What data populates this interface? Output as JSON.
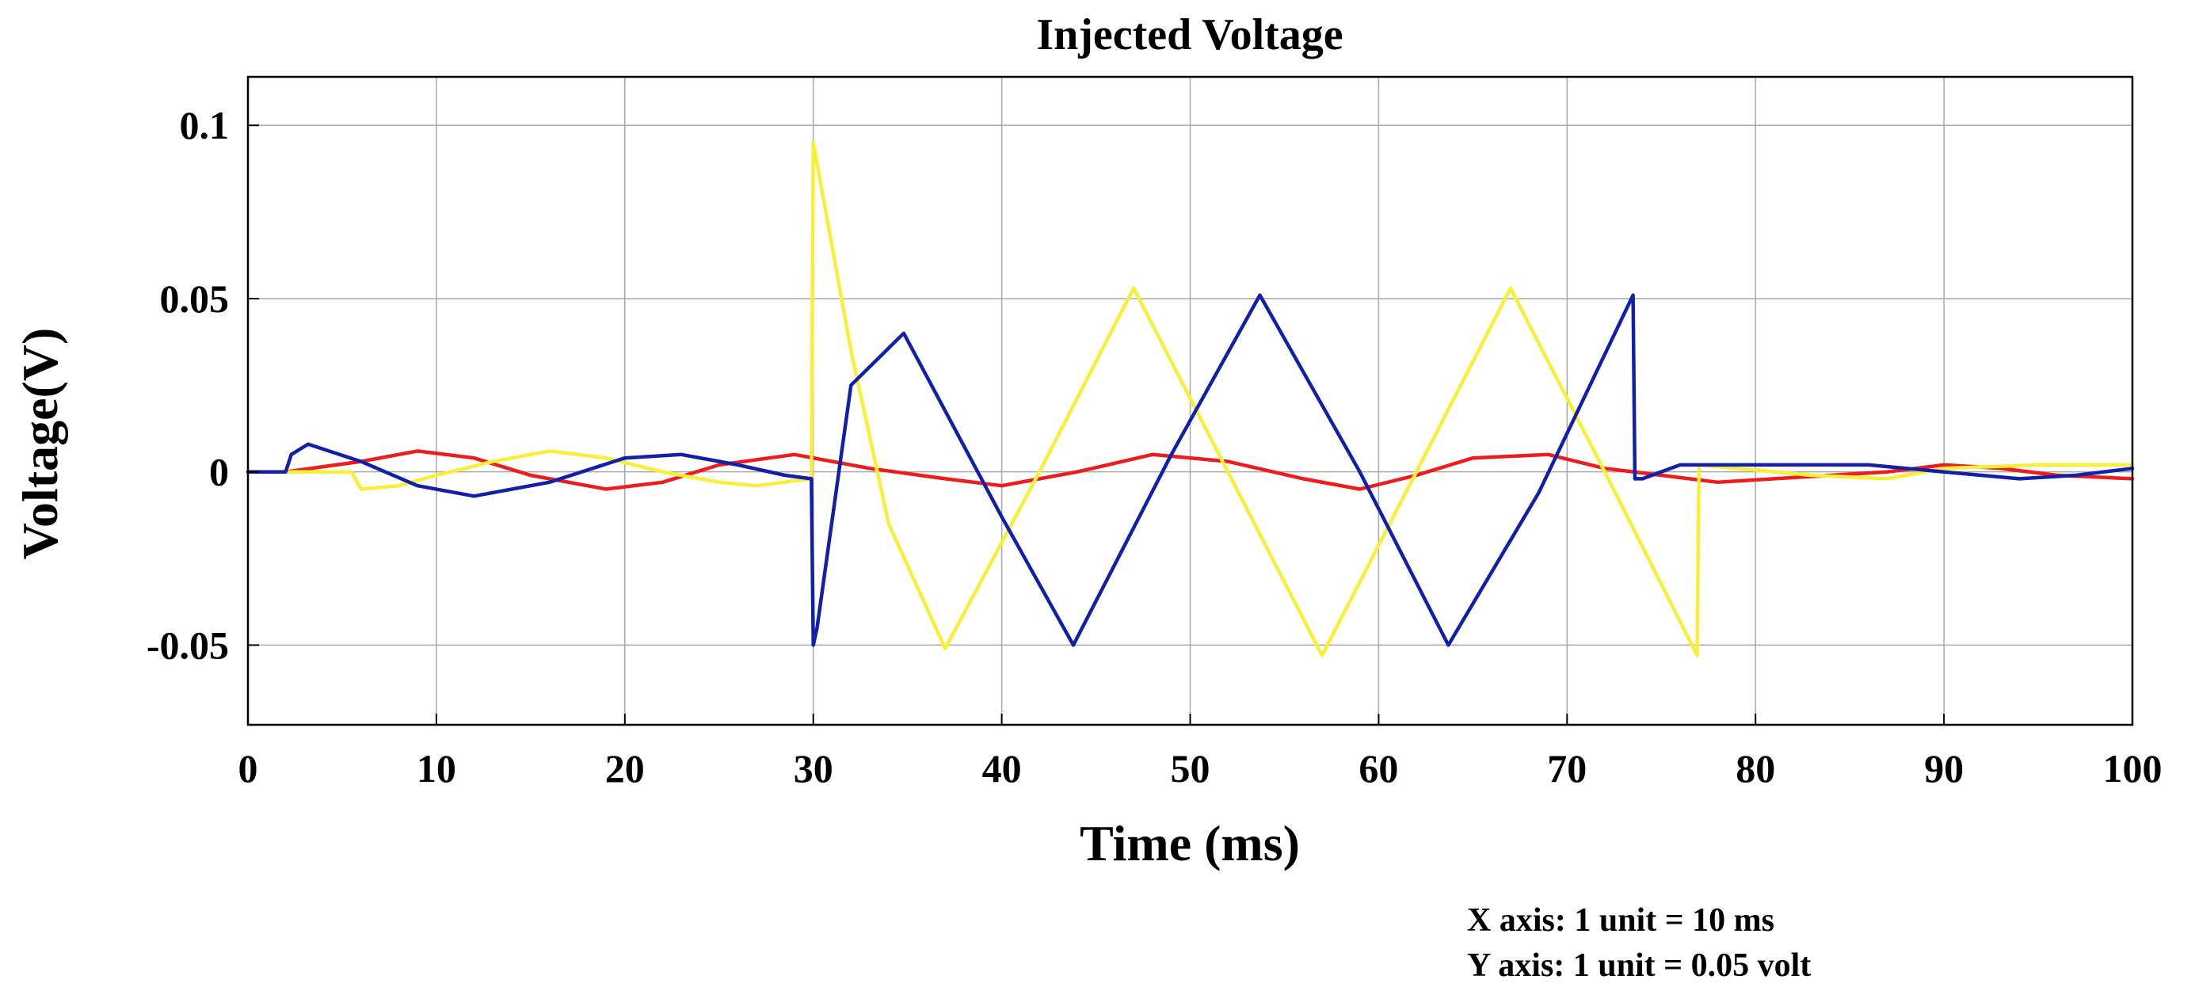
{
  "chart_data": {
    "type": "line",
    "title": "Injected Voltage",
    "xlabel": "Time (ms)",
    "ylabel": "Voltage(V)",
    "xlim": [
      0,
      100
    ],
    "ylim": [
      -0.073,
      0.114
    ],
    "grid": true,
    "x_ticks": [
      0,
      10,
      20,
      30,
      40,
      50,
      60,
      70,
      80,
      90,
      100
    ],
    "x_tick_labels": [
      "0",
      "10",
      "20",
      "30",
      "40",
      "50",
      "60",
      "70",
      "80",
      "90",
      "100"
    ],
    "y_ticks": [
      -0.05,
      0,
      0.05,
      0.1
    ],
    "y_tick_labels": [
      "-0.05",
      "0",
      "0.05",
      "0.1"
    ],
    "notes": [
      "X axis: 1 unit = 10 ms",
      "Y axis: 1 unit = 0.05 volt"
    ],
    "series": [
      {
        "name": "red",
        "color": "#ee1c1c",
        "x": [
          0,
          2,
          6,
          9,
          12,
          15,
          19,
          22,
          25,
          29,
          33,
          37,
          40,
          44,
          48,
          52,
          56,
          59,
          62,
          65,
          69,
          72,
          75,
          78,
          81,
          84,
          87,
          90,
          93,
          96,
          100
        ],
        "y": [
          0,
          0,
          0.003,
          0.006,
          0.004,
          -0.001,
          -0.005,
          -0.003,
          0.002,
          0.005,
          0.001,
          -0.002,
          -0.004,
          0,
          0.005,
          0.003,
          -0.002,
          -0.005,
          -0.001,
          0.004,
          0.005,
          0.001,
          -0.001,
          -0.003,
          -0.002,
          -0.001,
          0,
          0.002,
          0.001,
          -0.001,
          -0.002
        ]
      },
      {
        "name": "yellow",
        "color": "#f7ef3a",
        "x": [
          0,
          5.5,
          6,
          8,
          10,
          13,
          16,
          19,
          22,
          25,
          27,
          29.9,
          30,
          32,
          34,
          37,
          42,
          47,
          52,
          57,
          62,
          67,
          72,
          76.9,
          77,
          79,
          83,
          87,
          90,
          95,
          100
        ],
        "y": [
          0,
          0,
          -0.005,
          -0.004,
          -0.001,
          0.003,
          0.006,
          0.004,
          0,
          -0.003,
          -0.004,
          -0.002,
          0.095,
          0.035,
          -0.015,
          -0.051,
          0,
          0.053,
          0,
          -0.053,
          0,
          0.053,
          0,
          -0.053,
          0.002,
          0.001,
          -0.001,
          -0.002,
          0.001,
          0.002,
          0.002
        ]
      },
      {
        "name": "blue",
        "color": "#1220a8",
        "x": [
          0,
          2,
          2.3,
          3.2,
          6,
          9,
          12,
          16,
          20,
          23,
          26,
          28.5,
          29.9,
          30,
          30.2,
          32,
          34.8,
          40,
          43.8,
          49,
          53.7,
          59,
          63.7,
          68.5,
          73.5,
          73.6,
          74,
          76,
          80,
          86,
          90,
          94,
          97,
          100
        ],
        "y": [
          0,
          0,
          0.005,
          0.008,
          0.003,
          -0.004,
          -0.007,
          -0.003,
          0.004,
          0.005,
          0.002,
          -0.001,
          -0.002,
          -0.05,
          -0.045,
          0.025,
          0.04,
          -0.013,
          -0.05,
          0.005,
          0.051,
          0,
          -0.05,
          -0.006,
          0.051,
          -0.002,
          -0.002,
          0.002,
          0.002,
          0.002,
          0,
          -0.002,
          -0.001,
          0.001
        ]
      }
    ]
  }
}
